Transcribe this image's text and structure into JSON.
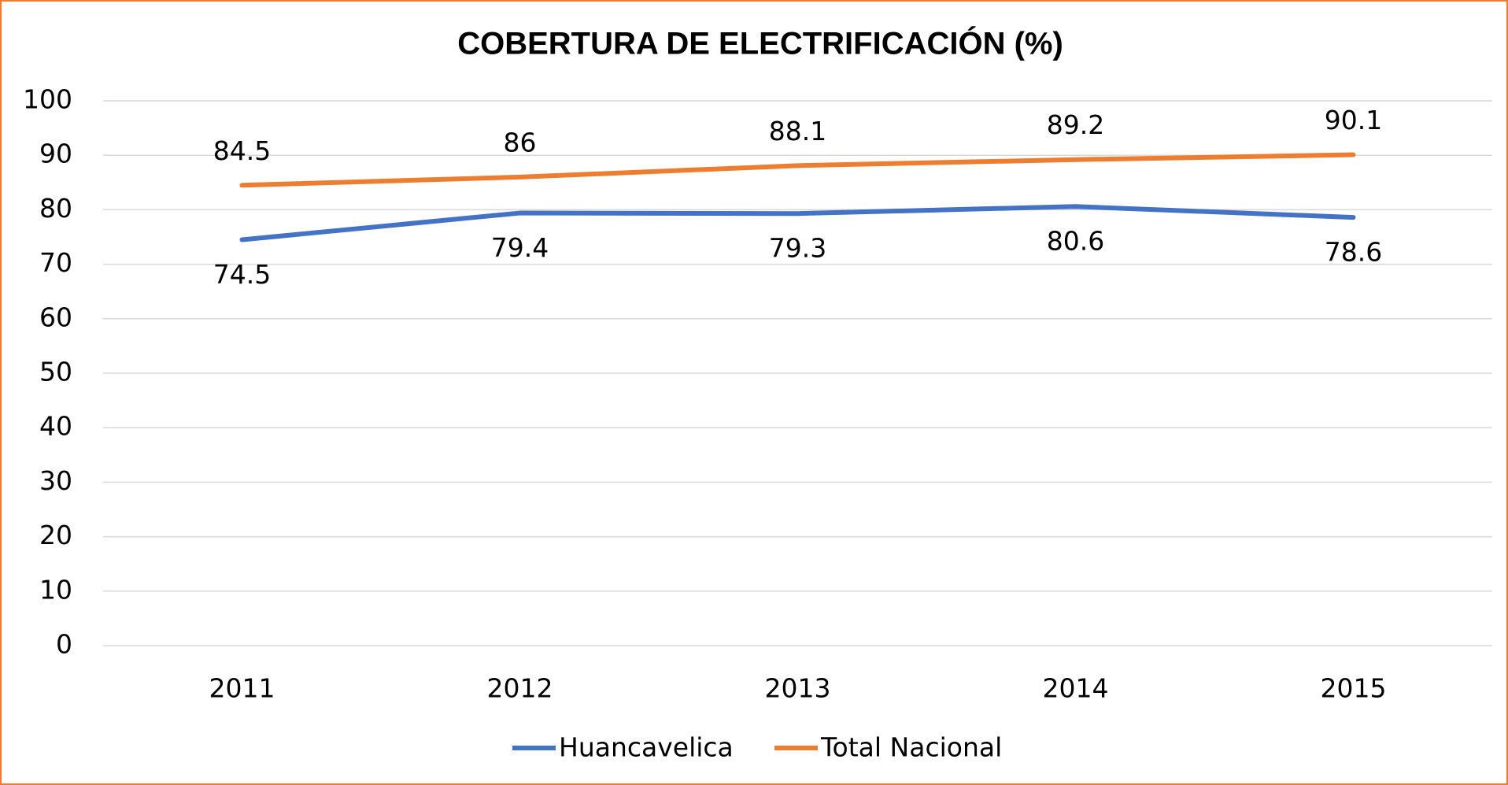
{
  "chart_data": {
    "type": "line",
    "title": "COBERTURA DE ELECTRIFICACIÓN (%)",
    "categories": [
      "2011",
      "2012",
      "2013",
      "2014",
      "2015"
    ],
    "series": [
      {
        "name": "Huancavelica",
        "color": "#4472c4",
        "values": [
          74.5,
          79.4,
          79.3,
          80.6,
          78.6
        ],
        "label_position": "below"
      },
      {
        "name": "Total Nacional",
        "color": "#ed7d31",
        "values": [
          84.5,
          86,
          88.1,
          89.2,
          90.1
        ],
        "label_position": "above"
      }
    ],
    "ylim": [
      0,
      100
    ],
    "yticks": [
      0,
      10,
      20,
      30,
      40,
      50,
      60,
      70,
      80,
      90,
      100
    ],
    "grid": true,
    "legend": "bottom"
  }
}
